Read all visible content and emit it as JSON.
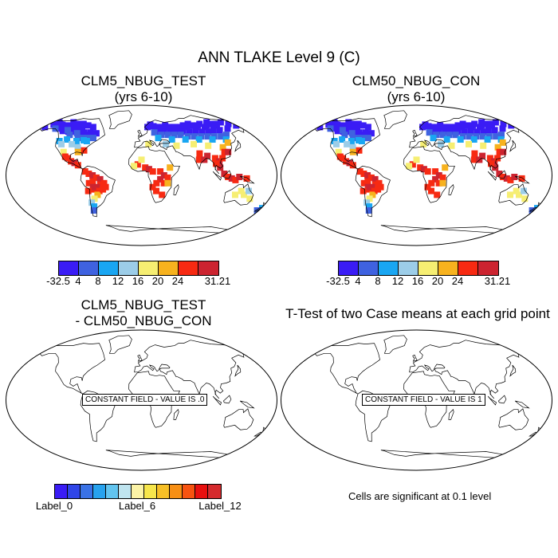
{
  "title": "ANN TLAKE Level 9 (C)",
  "panels": [
    {
      "title_line1": "CLM5_NBUG_TEST",
      "title_line2": "(yrs 6-10)"
    },
    {
      "title_line1": "CLM50_NBUG_CON",
      "title_line2": "(yrs 6-10)"
    },
    {
      "title_line1": "CLM5_NBUG_TEST",
      "title_line2": "- CLM50_NBUG_CON",
      "constant_label": "CONSTANT FIELD - VALUE IS .0"
    },
    {
      "title_line1": "T-Test of two Case means at each grid point",
      "constant_label": "CONSTANT FIELD - VALUE IS 1"
    }
  ],
  "colorbar_top": {
    "colors": [
      "#3a1cf5",
      "#3f62e0",
      "#19a6f2",
      "#9ccde8",
      "#f6ee72",
      "#f7b21e",
      "#f72a12",
      "#cc2430"
    ],
    "labels": [
      "-32.5",
      "4",
      "8",
      "12",
      "16",
      "20",
      "24",
      "31.21"
    ]
  },
  "colorbar_diff": {
    "colors": [
      "#3a1cf5",
      "#2f45e8",
      "#3a72e6",
      "#27a2ee",
      "#62c4ef",
      "#bfe4ef",
      "#fbf3a6",
      "#f7e64b",
      "#f7bf26",
      "#f78f14",
      "#f75310",
      "#e8100f",
      "#d52a2d"
    ],
    "labels": [
      "Label_0",
      "Label_6",
      "Label_12"
    ]
  },
  "significance_note": "Cells are significant at 0.1 level"
}
